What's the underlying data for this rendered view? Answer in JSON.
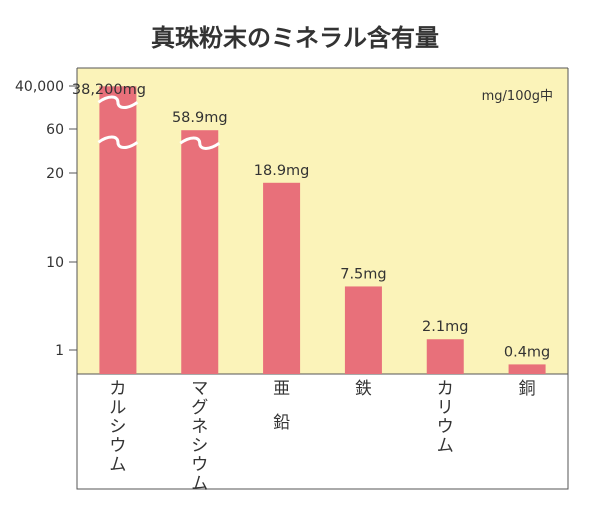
{
  "chart_data": {
    "type": "bar",
    "title": "真珠粉末のミネラル含有量",
    "unit_note": "mg/100g中",
    "xlabel": "",
    "ylabel": "",
    "y_tick_labels": [
      "40,000",
      "60",
      "20",
      "10",
      "1"
    ],
    "y_axis_break": true,
    "categories": [
      "カルシウム",
      "マグネシウム",
      "亜鉛",
      "鉄",
      "カリウム",
      "銅"
    ],
    "values": [
      38200,
      58.9,
      18.9,
      7.5,
      2.1,
      0.4
    ],
    "value_labels": [
      "38,200mg",
      "58.9mg",
      "18.9mg",
      "7.5mg",
      "2.1mg",
      "0.4mg"
    ],
    "grid": false,
    "legend": "none"
  },
  "colors": {
    "plot_background": "#fbf3b9",
    "bar": "#e8707a",
    "axis": "#555555",
    "text": "#333333"
  }
}
